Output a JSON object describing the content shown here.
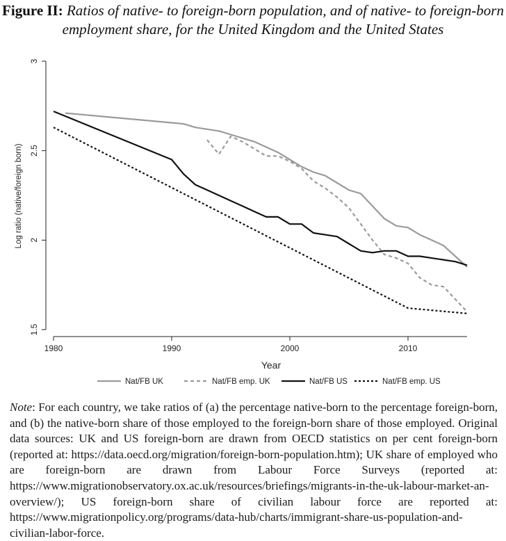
{
  "title": {
    "label": "Figure II:",
    "text": "Ratios of native- to foreign-born population, and of native- to foreign-born employment share, for the United Kingdom and the United States"
  },
  "chart_data": {
    "type": "line",
    "xlabel": "Year",
    "ylabel": "Log ratio (native/foreign born)",
    "xlim": [
      1980,
      2015
    ],
    "ylim": [
      1.5,
      3
    ],
    "x_ticks": [
      "1980",
      "1990",
      "2000",
      "2010"
    ],
    "y_ticks": [
      "1.5",
      "2",
      "2.5",
      "3"
    ],
    "grid": false,
    "legend_position": "bottom",
    "series": [
      {
        "name": "Nat/FB UK",
        "color": "#9a9a9a",
        "style": "solid",
        "points": [
          [
            1981,
            2.71
          ],
          [
            1991,
            2.65
          ],
          [
            1992,
            2.63
          ],
          [
            1993,
            2.62
          ],
          [
            1994,
            2.61
          ],
          [
            1995,
            2.59
          ],
          [
            1996,
            2.57
          ],
          [
            1997,
            2.55
          ],
          [
            1998,
            2.52
          ],
          [
            1999,
            2.49
          ],
          [
            2000,
            2.45
          ],
          [
            2001,
            2.41
          ],
          [
            2002,
            2.38
          ],
          [
            2003,
            2.36
          ],
          [
            2004,
            2.32
          ],
          [
            2005,
            2.28
          ],
          [
            2006,
            2.26
          ],
          [
            2007,
            2.19
          ],
          [
            2008,
            2.12
          ],
          [
            2009,
            2.08
          ],
          [
            2010,
            2.07
          ],
          [
            2011,
            2.03
          ],
          [
            2012,
            2.0
          ],
          [
            2013,
            1.97
          ],
          [
            2014,
            1.91
          ],
          [
            2015,
            1.85
          ]
        ]
      },
      {
        "name": "Nat/FB emp. UK",
        "color": "#9a9a9a",
        "style": "dash",
        "points": [
          [
            1993,
            2.56
          ],
          [
            1994,
            2.48
          ],
          [
            1995,
            2.58
          ],
          [
            1996,
            2.55
          ],
          [
            1997,
            2.51
          ],
          [
            1998,
            2.47
          ],
          [
            1999,
            2.47
          ],
          [
            2000,
            2.44
          ],
          [
            2001,
            2.4
          ],
          [
            2002,
            2.33
          ],
          [
            2003,
            2.29
          ],
          [
            2004,
            2.24
          ],
          [
            2005,
            2.18
          ],
          [
            2006,
            2.09
          ],
          [
            2007,
            2.0
          ],
          [
            2008,
            1.92
          ],
          [
            2009,
            1.9
          ],
          [
            2010,
            1.87
          ],
          [
            2011,
            1.79
          ],
          [
            2012,
            1.75
          ],
          [
            2013,
            1.74
          ],
          [
            2014,
            1.67
          ],
          [
            2015,
            1.6
          ]
        ]
      },
      {
        "name": "Nat/FB US",
        "color": "#111111",
        "style": "solid",
        "points": [
          [
            1980,
            2.72
          ],
          [
            1990,
            2.45
          ],
          [
            1991,
            2.37
          ],
          [
            1992,
            2.31
          ],
          [
            1993,
            2.28
          ],
          [
            1994,
            2.25
          ],
          [
            1995,
            2.22
          ],
          [
            1996,
            2.19
          ],
          [
            1997,
            2.16
          ],
          [
            1998,
            2.13
          ],
          [
            1999,
            2.13
          ],
          [
            2000,
            2.09
          ],
          [
            2001,
            2.09
          ],
          [
            2002,
            2.04
          ],
          [
            2003,
            2.03
          ],
          [
            2004,
            2.02
          ],
          [
            2005,
            1.98
          ],
          [
            2006,
            1.94
          ],
          [
            2007,
            1.93
          ],
          [
            2008,
            1.94
          ],
          [
            2009,
            1.94
          ],
          [
            2010,
            1.91
          ],
          [
            2011,
            1.91
          ],
          [
            2012,
            1.9
          ],
          [
            2013,
            1.89
          ],
          [
            2014,
            1.88
          ],
          [
            2015,
            1.86
          ]
        ]
      },
      {
        "name": "Nat/FB emp. US",
        "color": "#111111",
        "style": "dot",
        "points": [
          [
            1980,
            2.63
          ],
          [
            2010,
            1.62
          ],
          [
            2015,
            1.59
          ]
        ]
      }
    ]
  },
  "note": {
    "label": "Note",
    "text": ": For each country, we take ratios of (a) the percentage native-born to the percentage foreign-born, and (b) the native-born share of those employed to the foreign-born share of those employed. Original data sources: UK and US foreign-born are drawn from OECD statistics on per cent foreign-born (reported at: https://data.oecd.org/migration/foreign-born-population.htm); UK share of employed who are foreign-born are drawn from Labour Force Surveys (reported at: https://www.migrationobservatory.ox.ac.uk/resources/briefings/migrants-in-the-uk-labour-market-an-overview/); US foreign-born share of civilian labour force are reported at: https://www.migrationpolicy.org/programs/data-hub/charts/immigrant-share-us-population-and-civilian-labor-force."
  }
}
